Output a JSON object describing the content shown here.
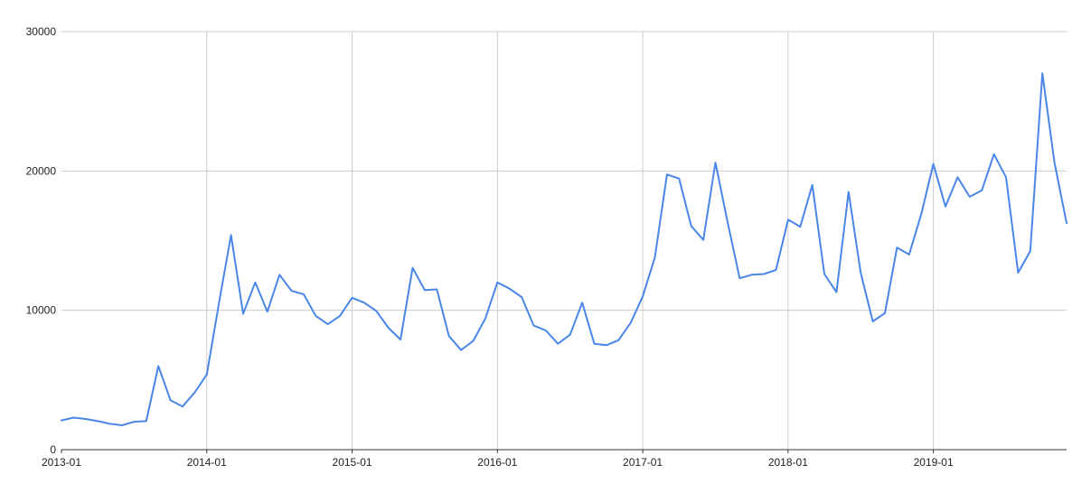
{
  "chart_data": {
    "type": "line",
    "title": "",
    "xlabel": "",
    "ylabel": "",
    "ylim": [
      0,
      30000
    ],
    "yticks": [
      "0",
      "10000",
      "20000",
      "30000"
    ],
    "xticks": [
      "2013-01",
      "2014-01",
      "2015-01",
      "2016-01",
      "2017-01",
      "2018-01",
      "2019-01"
    ],
    "grid": true,
    "legend": "none",
    "colors": {
      "line": "#4a86e8",
      "grid": "#cccccc",
      "axis": "#333333"
    },
    "series": [
      {
        "x": [
          "2013-01",
          "2013-02",
          "2013-03",
          "2013-04",
          "2013-05",
          "2013-06",
          "2013-07",
          "2013-08",
          "2013-09",
          "2013-10",
          "2013-11",
          "2013-12",
          "2014-01",
          "2014-02",
          "2014-03",
          "2014-04",
          "2014-05",
          "2014-06",
          "2014-07",
          "2014-08",
          "2014-09",
          "2014-10",
          "2014-11",
          "2014-12",
          "2015-01",
          "2015-02",
          "2015-03",
          "2015-04",
          "2015-05",
          "2015-06",
          "2015-07",
          "2015-08",
          "2015-09",
          "2015-10",
          "2015-11",
          "2015-12",
          "2016-01",
          "2016-02",
          "2016-03",
          "2016-04",
          "2016-05",
          "2016-06",
          "2016-07",
          "2016-08",
          "2016-09",
          "2016-10",
          "2016-11",
          "2016-12",
          "2017-01",
          "2017-02",
          "2017-03",
          "2017-04",
          "2017-05",
          "2017-06",
          "2017-07",
          "2017-08",
          "2017-09",
          "2017-10",
          "2017-11",
          "2017-12",
          "2018-01",
          "2018-02",
          "2018-03",
          "2018-04",
          "2018-05",
          "2018-06",
          "2018-07",
          "2018-08",
          "2018-09",
          "2018-10",
          "2018-11",
          "2018-12",
          "2019-01",
          "2019-02",
          "2019-03",
          "2019-04",
          "2019-05",
          "2019-06",
          "2019-07",
          "2019-08",
          "2019-09",
          "2019-10",
          "2019-11",
          "2019-12"
        ],
        "values": [
          2100,
          2300,
          2200,
          2050,
          1850,
          1750,
          2000,
          2050,
          6000,
          3550,
          3100,
          4100,
          5400,
          10500,
          15400,
          9750,
          12000,
          9900,
          12550,
          11400,
          11150,
          9600,
          9000,
          9600,
          10900,
          10550,
          9950,
          8750,
          7900,
          13050,
          11450,
          11500,
          8150,
          7150,
          7800,
          9400,
          12000,
          11550,
          10950,
          8900,
          8550,
          7600,
          8250,
          10550,
          7600,
          7500,
          7850,
          9100,
          11000,
          13800,
          19750,
          19450,
          16050,
          15050,
          20600,
          16350,
          12300,
          12550,
          12600,
          12900,
          16500,
          16000,
          19000,
          12600,
          11300,
          18500,
          12700,
          9200,
          9800,
          14500,
          14000,
          16900,
          20500,
          17450,
          19550,
          18150,
          18600,
          21200,
          19550,
          12700,
          14250,
          27000,
          20600,
          16250
        ]
      }
    ]
  }
}
